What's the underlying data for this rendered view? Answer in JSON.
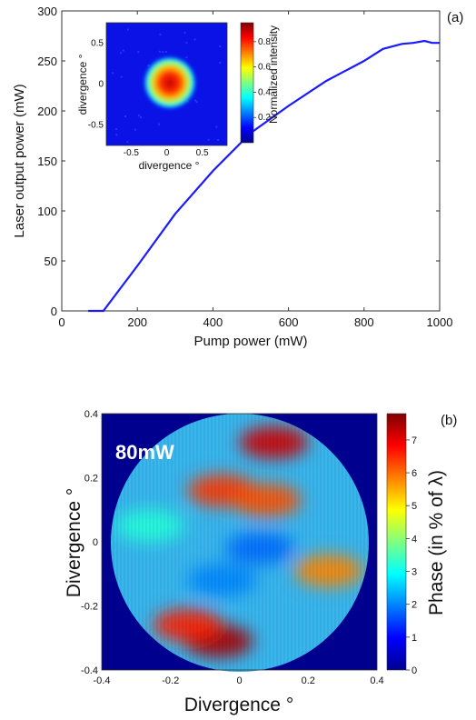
{
  "chart_data": [
    {
      "id": "a",
      "type": "line",
      "panel_label": "(a)",
      "xlabel": "Pump power (mW)",
      "ylabel": "Laser output power (mW)",
      "xlim": [
        0,
        1000
      ],
      "ylim": [
        0,
        300
      ],
      "xticks": [
        "0",
        "200",
        "400",
        "600",
        "800",
        "1000"
      ],
      "yticks": [
        "0",
        "50",
        "100",
        "150",
        "200",
        "250",
        "300"
      ],
      "series": [
        {
          "color": "#1a1aff",
          "x": [
            70,
            110,
            150,
            200,
            300,
            400,
            500,
            600,
            700,
            800,
            850,
            900,
            930,
            960,
            980,
            1000
          ],
          "y": [
            0,
            0,
            20,
            45,
            97,
            140,
            178,
            205,
            230,
            250,
            262,
            267,
            268,
            270,
            268,
            268
          ]
        }
      ],
      "inset": {
        "type": "heatmap",
        "xlabel": "divergence °",
        "ylabel": "divergence °",
        "xticks": [
          "-0.5",
          "0",
          "0.5"
        ],
        "yticks": [
          "0.5",
          "0",
          "-0.5"
        ],
        "colorbar_label": "Normalized intensity",
        "colorbar_ticks": [
          "0.8",
          "0.6",
          "0.4",
          "0.2"
        ],
        "colormap": "jet"
      }
    },
    {
      "id": "b",
      "type": "heatmap",
      "panel_label": "(b)",
      "annotation": "80mW",
      "xlabel": "Divergence °",
      "ylabel": "Divergence °",
      "xticks": [
        "-0.4",
        "-0.2",
        "0",
        "0.2",
        "0.4"
      ],
      "yticks": [
        "0.4",
        "0.2",
        "0",
        "-0.2",
        "-0.4"
      ],
      "xlim": [
        -0.4,
        0.4
      ],
      "ylim": [
        -0.4,
        0.4
      ],
      "colorbar_label": "Phase (in % of λ)",
      "colorbar_ticks": [
        "7",
        "6",
        "5",
        "4",
        "3",
        "2",
        "1",
        "0"
      ],
      "colorbar_range": [
        0,
        7.8
      ],
      "colormap": "jet",
      "hotspots": [
        {
          "x": 0.1,
          "y": 0.31,
          "value": 7.2
        },
        {
          "x": -0.06,
          "y": -0.31,
          "value": 7.5
        },
        {
          "x": -0.15,
          "y": -0.26,
          "value": 6.6
        },
        {
          "x": -0.05,
          "y": 0.16,
          "value": 6.4
        },
        {
          "x": 0.08,
          "y": 0.13,
          "value": 6.2
        },
        {
          "x": 0.26,
          "y": -0.09,
          "value": 5.8
        },
        {
          "x": -0.26,
          "y": 0.05,
          "value": 3.2
        },
        {
          "x": 0.06,
          "y": -0.02,
          "value": 1.8
        },
        {
          "x": -0.05,
          "y": -0.12,
          "value": 2.0
        }
      ]
    }
  ]
}
